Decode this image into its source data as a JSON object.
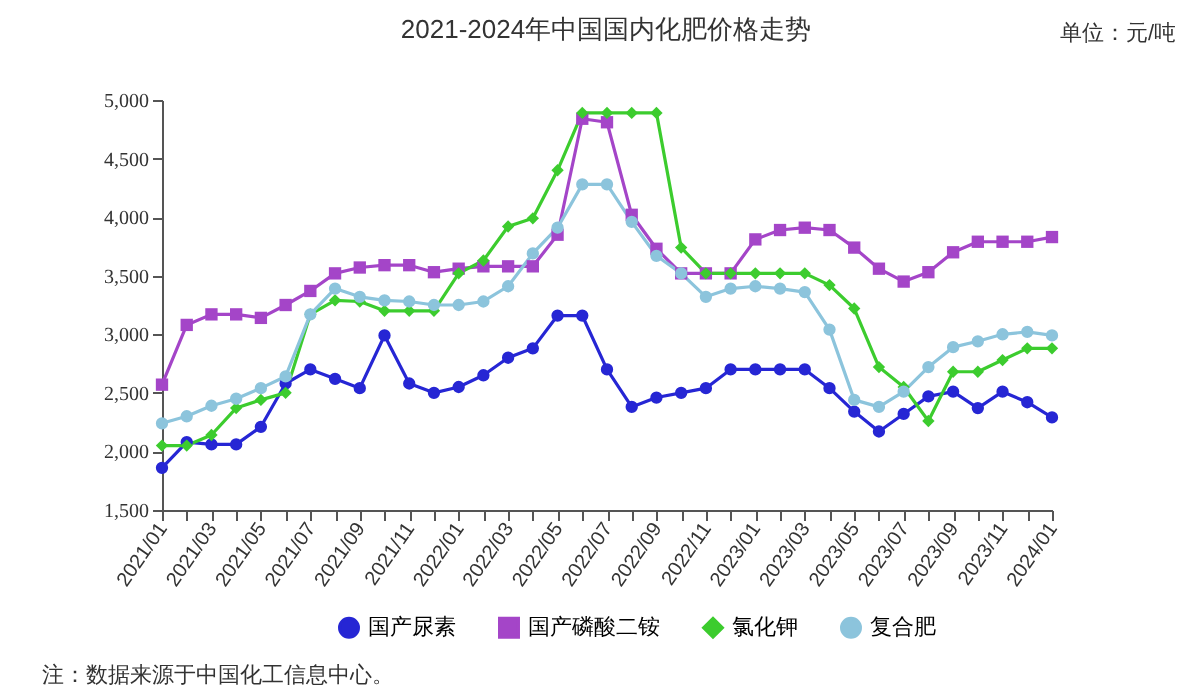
{
  "chart_data": {
    "type": "line",
    "title": "2021-2024年中国国内化肥价格走势",
    "annotations": [
      "单位：元/吨",
      "注：数据来源于中国化工信息中心。"
    ],
    "categories": [
      "2021/01",
      null,
      "2021/03",
      null,
      "2021/05",
      null,
      "2021/07",
      null,
      "2021/09",
      null,
      "2021/11",
      null,
      "2022/01",
      null,
      "2022/03",
      null,
      "2022/05",
      null,
      "2022/07",
      null,
      "2022/09",
      null,
      "2022/11",
      null,
      "2023/01",
      null,
      "2023/03",
      null,
      "2023/05",
      null,
      "2023/07",
      null,
      "2023/09",
      null,
      "2023/11",
      null,
      "2024/01"
    ],
    "series": [
      {
        "name": "国产尿素",
        "color": "#2626d4",
        "marker": "circle",
        "values": [
          1860,
          2080,
          2060,
          2060,
          2210,
          2580,
          2700,
          2620,
          2540,
          2990,
          2580,
          2500,
          2550,
          2650,
          2800,
          2880,
          3160,
          3160,
          2700,
          2380,
          2460,
          2500,
          2540,
          2700,
          2700,
          2700,
          2700,
          2540,
          2340,
          2170,
          2320,
          2470,
          2510,
          2370,
          2510,
          2420,
          2290
        ]
      },
      {
        "name": "国产磷酸二铵",
        "color": "#a445c8",
        "marker": "square",
        "values": [
          2570,
          3080,
          3170,
          3170,
          3140,
          3250,
          3370,
          3520,
          3570,
          3590,
          3590,
          3530,
          3560,
          3580,
          3580,
          3580,
          3850,
          4840,
          4810,
          4020,
          3730,
          3520,
          3520,
          3520,
          3810,
          3890,
          3910,
          3890,
          3740,
          3560,
          3450,
          3530,
          3700,
          3790,
          3790,
          3790,
          3830
        ]
      },
      {
        "name": "氯化钾",
        "color": "#3ccc2e",
        "marker": "diamond",
        "values": [
          2050,
          2050,
          2140,
          2370,
          2440,
          2500,
          3170,
          3290,
          3280,
          3200,
          3200,
          3200,
          3520,
          3630,
          3920,
          3990,
          4400,
          4890,
          4890,
          4890,
          4890,
          3740,
          3520,
          3520,
          3520,
          3520,
          3520,
          3420,
          3220,
          2720,
          2550,
          2260,
          2680,
          2680,
          2780,
          2880,
          2880
        ]
      },
      {
        "name": "复合肥",
        "color": "#8cc4dc",
        "marker": "circle",
        "values": [
          2240,
          2300,
          2390,
          2450,
          2540,
          2640,
          3170,
          3390,
          3320,
          3290,
          3280,
          3250,
          3250,
          3280,
          3410,
          3690,
          3910,
          4280,
          4280,
          3960,
          3670,
          3520,
          3320,
          3390,
          3410,
          3390,
          3360,
          3040,
          2440,
          2380,
          2510,
          2720,
          2890,
          2940,
          3000,
          3020,
          2990
        ]
      }
    ],
    "ylim": [
      1500,
      5000
    ],
    "yticks": [
      {
        "value": 1500,
        "label": "1,500"
      },
      {
        "value": 2000,
        "label": "2,000"
      },
      {
        "value": 2500,
        "label": "2,500"
      },
      {
        "value": 3000,
        "label": "3,000"
      },
      {
        "value": 3500,
        "label": "3,500"
      },
      {
        "value": 4000,
        "label": "4,000"
      },
      {
        "value": 4500,
        "label": "4,500"
      },
      {
        "value": 5000,
        "label": "5,000"
      }
    ],
    "grid": false,
    "legend": "bottom",
    "line_style": "solid"
  }
}
